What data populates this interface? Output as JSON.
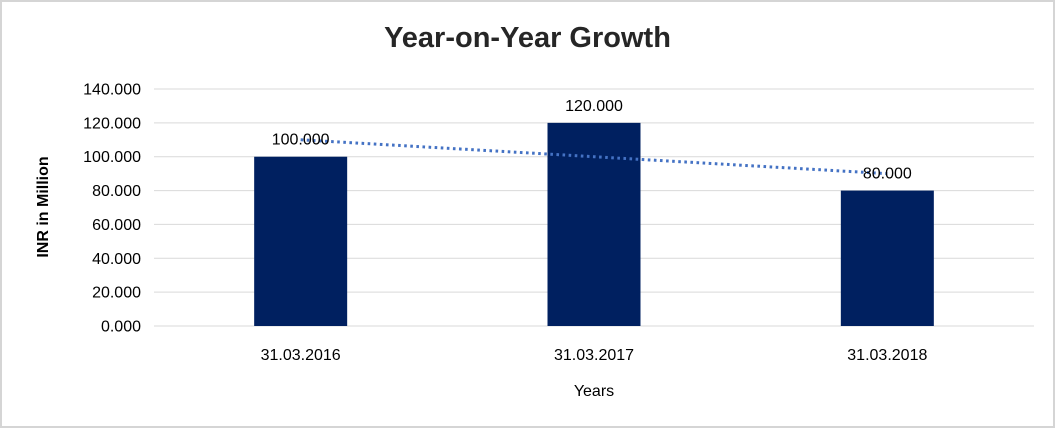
{
  "window": {
    "background": "#FFFFFF",
    "border_color": "#D5D5D5"
  },
  "chart_data": {
    "type": "bar",
    "title": "Year-on-Year Growth",
    "xlabel": "Years",
    "ylabel": "INR in Million",
    "categories": [
      "31.03.2016",
      "31.03.2017",
      "31.03.2018"
    ],
    "values": [
      100,
      120,
      80
    ],
    "data_labels": [
      "100.000",
      "120.000",
      "80.000"
    ],
    "ylim": [
      0,
      140
    ],
    "yticks": [
      {
        "value": 0,
        "label": "0.000"
      },
      {
        "value": 20,
        "label": "20.000"
      },
      {
        "value": 40,
        "label": "40.000"
      },
      {
        "value": 60,
        "label": "60.000"
      },
      {
        "value": 80,
        "label": "80.000"
      },
      {
        "value": 100,
        "label": "100.000"
      },
      {
        "value": 120,
        "label": "120.000"
      },
      {
        "value": 140,
        "label": "140.000"
      }
    ],
    "grid": true,
    "legend": "none",
    "bar_color": "#002060",
    "gridline_color": "#D9D9D9",
    "label_color": "#000000",
    "title_color": "#262626",
    "trendline": {
      "type": "linear",
      "style": "dotted",
      "color": "#4472C4",
      "fitted_values": [
        110,
        100,
        90
      ]
    }
  }
}
